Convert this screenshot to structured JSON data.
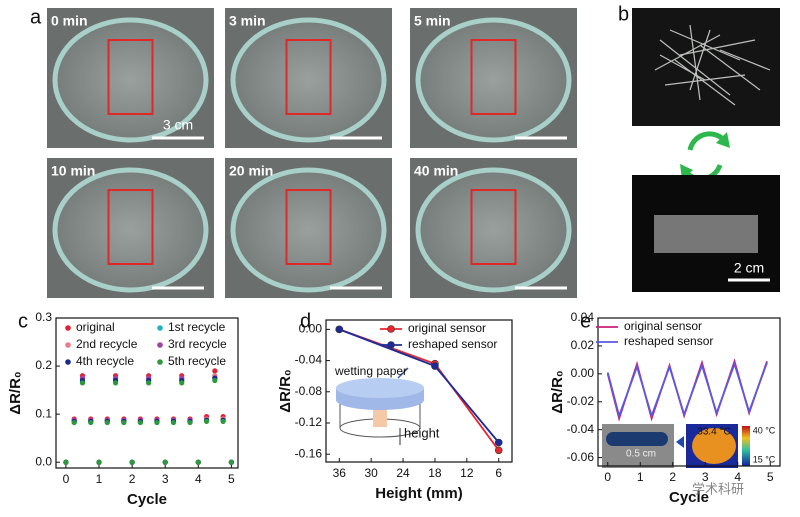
{
  "figure": {
    "panel_labels": [
      "a",
      "b",
      "c",
      "d",
      "e"
    ],
    "a": {
      "times": [
        "0 min",
        "3 min",
        "5 min",
        "10 min",
        "20 min",
        "40 min"
      ],
      "scale": "3 cm"
    },
    "b": {
      "scale": "2 cm"
    },
    "watermark": "学术科研"
  },
  "chart_data": [
    {
      "type": "scatter",
      "xlabel": "Cycle",
      "ylabel": "ΔR/R₀",
      "x": [
        0,
        0.25,
        0.5,
        0.75,
        1,
        1.25,
        1.5,
        1.75,
        2,
        2.25,
        2.5,
        2.75,
        3,
        3.25,
        3.5,
        3.75,
        4,
        4.25,
        4.5,
        4.75,
        5
      ],
      "series": [
        {
          "name": "original",
          "color": "#e02030",
          "values": [
            0,
            0.09,
            0.18,
            0.09,
            0,
            0.09,
            0.18,
            0.09,
            0,
            0.09,
            0.18,
            0.09,
            0,
            0.09,
            0.18,
            0.09,
            0,
            0.095,
            0.19,
            0.095,
            0
          ]
        },
        {
          "name": "1st recycle",
          "color": "#1fb3c8",
          "values": [
            0,
            0.085,
            0.17,
            0.085,
            0,
            0.085,
            0.17,
            0.085,
            0,
            0.085,
            0.17,
            0.085,
            0,
            0.085,
            0.17,
            0.085,
            0,
            0.09,
            0.18,
            0.09,
            0
          ]
        },
        {
          "name": "2nd recycle",
          "color": "#f07888",
          "values": [
            0,
            0.0875,
            0.175,
            0.0875,
            0,
            0.0875,
            0.175,
            0.0875,
            0,
            0.0875,
            0.175,
            0.0875,
            0,
            0.0875,
            0.175,
            0.0875,
            0,
            0.09,
            0.18,
            0.09,
            0
          ]
        },
        {
          "name": "3rd recycle",
          "color": "#a040a8",
          "values": [
            0,
            0.0875,
            0.175,
            0.0875,
            0,
            0.0875,
            0.175,
            0.0875,
            0,
            0.0875,
            0.175,
            0.0875,
            0,
            0.0875,
            0.175,
            0.0875,
            0,
            0.0875,
            0.175,
            0.0875,
            0
          ]
        },
        {
          "name": "4th recycle",
          "color": "#1a2a8c",
          "values": [
            0,
            0.085,
            0.17,
            0.085,
            0,
            0.085,
            0.17,
            0.085,
            0,
            0.085,
            0.17,
            0.085,
            0,
            0.085,
            0.17,
            0.085,
            0,
            0.0875,
            0.175,
            0.0875,
            0
          ]
        },
        {
          "name": "5th recycle",
          "color": "#2a9a3a",
          "values": [
            0,
            0.0825,
            0.165,
            0.0825,
            0,
            0.0825,
            0.165,
            0.0825,
            0,
            0.0825,
            0.165,
            0.0825,
            0,
            0.0825,
            0.165,
            0.0825,
            0,
            0.085,
            0.17,
            0.085,
            0
          ]
        }
      ],
      "xlim": [
        -0.3,
        5.2
      ],
      "xticks": [
        0,
        1,
        2,
        3,
        4,
        5
      ],
      "ylim": [
        -0.012,
        0.3
      ],
      "yticks": [
        {
          "value": 0,
          "label": "0.0"
        },
        {
          "value": 0.1,
          "label": "0.1"
        },
        {
          "value": 0.2,
          "label": "0.2"
        },
        {
          "value": 0.3,
          "label": "0.3"
        }
      ]
    },
    {
      "type": "line",
      "xlabel": "Height (mm)",
      "ylabel": "ΔR/R₀",
      "markers": true,
      "x": [
        36,
        18,
        6
      ],
      "series": [
        {
          "name": "original sensor",
          "color": "#e8262c",
          "values": [
            0,
            -0.044,
            -0.155
          ]
        },
        {
          "name": "reshaped sensor",
          "color": "#1c2a9c",
          "values": [
            0,
            -0.047,
            -0.145
          ]
        }
      ],
      "xlim": [
        38.5,
        3.5
      ],
      "xticks": [
        36,
        30,
        24,
        18,
        12,
        6
      ],
      "ylim": [
        -0.17,
        0.012
      ],
      "yticks": [
        {
          "value": 0,
          "label": "0.00"
        },
        {
          "value": -0.04,
          "label": "-0.04"
        },
        {
          "value": -0.08,
          "label": "-0.08"
        },
        {
          "value": -0.12,
          "label": "-0.12"
        },
        {
          "value": -0.16,
          "label": "-0.16"
        }
      ],
      "annotations": [
        "wetting paper",
        "height"
      ]
    },
    {
      "type": "line",
      "xlabel": "Cycle",
      "ylabel": "ΔR/R₀",
      "x": [
        0,
        0.35,
        0.9,
        1.35,
        1.9,
        2.35,
        2.9,
        3.35,
        3.9,
        4.35,
        4.9
      ],
      "series": [
        {
          "name": "original sensor",
          "color": "#c8207a",
          "values": [
            0,
            -0.032,
            0.007,
            -0.032,
            0.006,
            -0.03,
            0.008,
            -0.029,
            0.009,
            -0.028,
            0.009
          ]
        },
        {
          "name": "reshaped sensor",
          "color": "#5a5ae0",
          "values": [
            0.001,
            -0.03,
            0.005,
            -0.03,
            0.005,
            -0.029,
            0.006,
            -0.028,
            0.007,
            -0.027,
            0.008
          ]
        }
      ],
      "xlim": [
        -0.3,
        5.3
      ],
      "xticks": [
        0,
        1,
        2,
        3,
        4,
        5
      ],
      "ylim": [
        -0.066,
        0.04
      ],
      "yticks": [
        {
          "value": 0.04,
          "label": "0.04"
        },
        {
          "value": 0.02,
          "label": "0.02"
        },
        {
          "value": 0,
          "label": "0.00"
        },
        {
          "value": -0.02,
          "label": "-0.02"
        },
        {
          "value": -0.04,
          "label": "-0.04"
        },
        {
          "value": -0.06,
          "label": "-0.06"
        }
      ],
      "annotations": [
        "0.5 cm",
        "33.4 °C",
        "40 °C",
        "15 °C"
      ]
    }
  ]
}
